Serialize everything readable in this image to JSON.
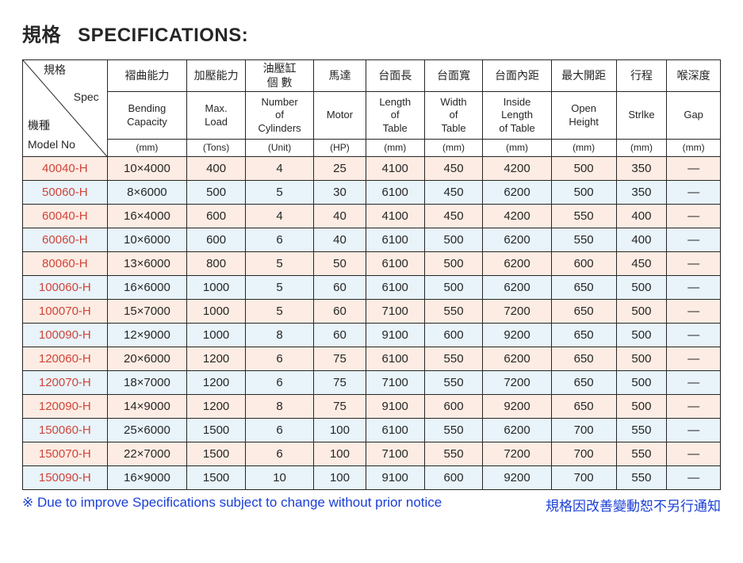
{
  "title": {
    "cjk": "規格",
    "en": "SPECIFICATIONS:"
  },
  "corner": {
    "spec_cjk": "規格",
    "spec_en": "Spec",
    "model_cjk": "機種",
    "model_en": "Model No"
  },
  "columns": [
    {
      "cjk": "褶曲能力",
      "en": "Bending Capacity",
      "unit": "(mm)"
    },
    {
      "cjk": "加壓能力",
      "en": "Max. Load",
      "unit": "(Tons)"
    },
    {
      "cjk": "油壓缸\n個 數",
      "en": "Number of Cylinders",
      "unit": "(Unit)"
    },
    {
      "cjk": "馬達",
      "en": "Motor",
      "unit": "(HP)"
    },
    {
      "cjk": "台面長",
      "en": "Length of Table",
      "unit": "(mm)"
    },
    {
      "cjk": "台面寬",
      "en": "Width of Table",
      "unit": "(mm)"
    },
    {
      "cjk": "台面內距",
      "en": "Inside Length of Table",
      "unit": "(mm)"
    },
    {
      "cjk": "最大開距",
      "en": "Open Height",
      "unit": "(mm)"
    },
    {
      "cjk": "行程",
      "en": "Strlke",
      "unit": "(mm)"
    },
    {
      "cjk": "喉深度",
      "en": "Gap",
      "unit": "(mm)"
    }
  ],
  "rows": [
    {
      "model": "40040-H",
      "cells": [
        "10×4000",
        "400",
        "4",
        "25",
        "4100",
        "450",
        "4200",
        "500",
        "350",
        "—"
      ]
    },
    {
      "model": "50060-H",
      "cells": [
        "8×6000",
        "500",
        "5",
        "30",
        "6100",
        "450",
        "6200",
        "500",
        "350",
        "—"
      ]
    },
    {
      "model": "60040-H",
      "cells": [
        "16×4000",
        "600",
        "4",
        "40",
        "4100",
        "450",
        "4200",
        "550",
        "400",
        "—"
      ]
    },
    {
      "model": "60060-H",
      "cells": [
        "10×6000",
        "600",
        "6",
        "40",
        "6100",
        "500",
        "6200",
        "550",
        "400",
        "—"
      ]
    },
    {
      "model": "80060-H",
      "cells": [
        "13×6000",
        "800",
        "5",
        "50",
        "6100",
        "500",
        "6200",
        "600",
        "450",
        "—"
      ]
    },
    {
      "model": "100060-H",
      "cells": [
        "16×6000",
        "1000",
        "5",
        "60",
        "6100",
        "500",
        "6200",
        "650",
        "500",
        "—"
      ]
    },
    {
      "model": "100070-H",
      "cells": [
        "15×7000",
        "1000",
        "5",
        "60",
        "7100",
        "550",
        "7200",
        "650",
        "500",
        "—"
      ]
    },
    {
      "model": "100090-H",
      "cells": [
        "12×9000",
        "1000",
        "8",
        "60",
        "9100",
        "600",
        "9200",
        "650",
        "500",
        "—"
      ]
    },
    {
      "model": "120060-H",
      "cells": [
        "20×6000",
        "1200",
        "6",
        "75",
        "6100",
        "550",
        "6200",
        "650",
        "500",
        "—"
      ]
    },
    {
      "model": "120070-H",
      "cells": [
        "18×7000",
        "1200",
        "6",
        "75",
        "7100",
        "550",
        "7200",
        "650",
        "500",
        "—"
      ]
    },
    {
      "model": "120090-H",
      "cells": [
        "14×9000",
        "1200",
        "8",
        "75",
        "9100",
        "600",
        "9200",
        "650",
        "500",
        "—"
      ]
    },
    {
      "model": "150060-H",
      "cells": [
        "25×6000",
        "1500",
        "6",
        "100",
        "6100",
        "550",
        "6200",
        "700",
        "550",
        "—"
      ]
    },
    {
      "model": "150070-H",
      "cells": [
        "22×7000",
        "1500",
        "6",
        "100",
        "7100",
        "550",
        "7200",
        "700",
        "550",
        "—"
      ]
    },
    {
      "model": "150090-H",
      "cells": [
        "16×9000",
        "1500",
        "10",
        "100",
        "9100",
        "600",
        "9200",
        "700",
        "550",
        "—"
      ]
    }
  ],
  "row_colors": {
    "odd": "#fdece3",
    "even": "#e8f3fa"
  },
  "model_text_color": "#d0443a",
  "border_color": "#262626",
  "footnote": {
    "symbol": "※",
    "en": "Due  to  improve Specifications  subject to change without prior notice",
    "cjk": "規格因改善變動恕不另行通知",
    "color": "#1a3fd6"
  }
}
